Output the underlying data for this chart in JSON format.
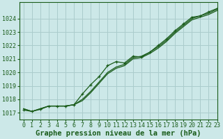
{
  "title": "Graphe pression niveau de la mer (hPa)",
  "background_color": "#cce8e8",
  "grid_color": "#aacccc",
  "line_color": "#1a5c1a",
  "xlim": [
    -0.5,
    23
  ],
  "ylim": [
    1016.5,
    1025.2
  ],
  "yticks": [
    1017,
    1018,
    1019,
    1020,
    1021,
    1022,
    1023,
    1024
  ],
  "xticks": [
    0,
    1,
    2,
    3,
    4,
    5,
    6,
    7,
    8,
    9,
    10,
    11,
    12,
    13,
    14,
    15,
    16,
    17,
    18,
    19,
    20,
    21,
    22,
    23
  ],
  "series": [
    {
      "y": [
        1017.3,
        1017.1,
        1017.3,
        1017.5,
        1017.5,
        1017.5,
        1017.6,
        1017.9,
        1018.5,
        1019.2,
        1019.9,
        1020.3,
        1020.5,
        1021.0,
        1021.1,
        1021.4,
        1021.8,
        1022.3,
        1022.9,
        1023.4,
        1023.9,
        1024.1,
        1024.3,
        1024.6
      ],
      "marker": false,
      "lw": 0.9
    },
    {
      "y": [
        1017.3,
        1017.1,
        1017.3,
        1017.5,
        1017.5,
        1017.5,
        1017.6,
        1018.0,
        1018.6,
        1019.3,
        1020.0,
        1020.4,
        1020.6,
        1021.1,
        1021.2,
        1021.5,
        1021.9,
        1022.4,
        1023.0,
        1023.5,
        1024.0,
        1024.2,
        1024.4,
        1024.7
      ],
      "marker": false,
      "lw": 0.9
    },
    {
      "y": [
        1017.2,
        1017.1,
        1017.25,
        1017.5,
        1017.5,
        1017.5,
        1017.6,
        1018.4,
        1019.1,
        1019.7,
        1020.5,
        1020.8,
        1020.7,
        1021.2,
        1021.15,
        1021.5,
        1022.0,
        1022.5,
        1023.1,
        1023.6,
        1024.1,
        1024.2,
        1024.5,
        1024.75
      ],
      "marker": true,
      "lw": 0.9
    }
  ],
  "title_fontsize": 7.5,
  "tick_fontsize": 6.0,
  "title_color": "#1a5c1a",
  "tick_color": "#1a5c1a"
}
